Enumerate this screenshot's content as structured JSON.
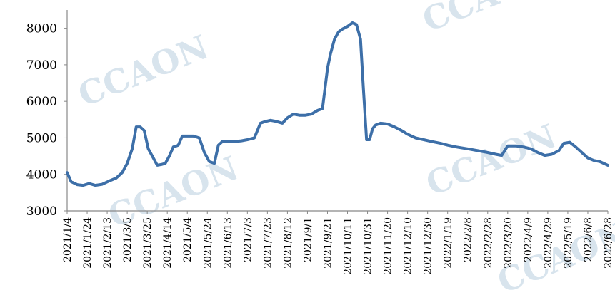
{
  "chart_data": {
    "type": "line",
    "title": "",
    "xlabel": "",
    "ylabel": "",
    "ylim": [
      3000,
      8500
    ],
    "yticks": [
      3000,
      4000,
      5000,
      6000,
      7000,
      8000
    ],
    "grid": false,
    "legend": "none",
    "line_color": "#3d6fa8",
    "x_tick_labels": [
      "2021/1/4",
      "2021/1/24",
      "2021/2/13",
      "2021/3/5",
      "2021/3/25",
      "2021/4/14",
      "2021/5/4",
      "2021/5/24",
      "2021/6/13",
      "2021/7/3",
      "2021/7/23",
      "2021/8/12",
      "2021/9/1",
      "2021/9/21",
      "2021/10/11",
      "2021/10/31",
      "2021/11/20",
      "2021/12/10",
      "2021/12/30",
      "2022/1/19",
      "2022/2/8",
      "2022/2/28",
      "2022/3/20",
      "2022/4/9",
      "2022/4/29",
      "2022/5/19",
      "2022/6/8",
      "2022/6/28"
    ],
    "series": [
      {
        "name": "",
        "x": [
          "2021/1/4",
          "2021/1/8",
          "2021/1/14",
          "2021/1/20",
          "2021/1/26",
          "2021/2/1",
          "2021/2/8",
          "2021/2/15",
          "2021/2/22",
          "2021/2/28",
          "2021/3/5",
          "2021/3/10",
          "2021/3/14",
          "2021/3/18",
          "2021/3/22",
          "2021/3/26",
          "2021/3/30",
          "2021/4/4",
          "2021/4/8",
          "2021/4/12",
          "2021/4/16",
          "2021/4/20",
          "2021/4/25",
          "2021/4/29",
          "2021/5/4",
          "2021/5/10",
          "2021/5/16",
          "2021/5/21",
          "2021/5/26",
          "2021/5/31",
          "2021/6/4",
          "2021/6/8",
          "2021/6/13",
          "2021/6/20",
          "2021/6/27",
          "2021/7/3",
          "2021/7/10",
          "2021/7/16",
          "2021/7/21",
          "2021/7/26",
          "2021/8/1",
          "2021/8/7",
          "2021/8/12",
          "2021/8/18",
          "2021/8/24",
          "2021/8/30",
          "2021/9/5",
          "2021/9/11",
          "2021/9/16",
          "2021/9/21",
          "2021/9/24",
          "2021/9/28",
          "2021/10/2",
          "2021/10/6",
          "2021/10/11",
          "2021/10/16",
          "2021/10/20",
          "2021/10/24",
          "2021/10/27",
          "2021/10/30",
          "2021/11/2",
          "2021/11/5",
          "2021/11/8",
          "2021/11/13",
          "2021/11/20",
          "2021/11/27",
          "2021/12/4",
          "2021/12/10",
          "2021/12/18",
          "2021/12/26",
          "2022/1/3",
          "2022/1/12",
          "2022/1/19",
          "2022/1/28",
          "2022/2/8",
          "2022/2/18",
          "2022/2/28",
          "2022/3/8",
          "2022/3/14",
          "2022/3/20",
          "2022/3/28",
          "2022/4/5",
          "2022/4/12",
          "2022/4/19",
          "2022/4/26",
          "2022/5/3",
          "2022/5/10",
          "2022/5/15",
          "2022/5/21",
          "2022/5/27",
          "2022/6/2",
          "2022/6/8",
          "2022/6/14",
          "2022/6/20",
          "2022/6/28"
        ],
        "y": [
          4050,
          3800,
          3720,
          3700,
          3750,
          3700,
          3730,
          3820,
          3900,
          4050,
          4300,
          4700,
          5300,
          5300,
          5200,
          4700,
          4500,
          4250,
          4270,
          4300,
          4500,
          4750,
          4800,
          5050,
          5050,
          5050,
          5000,
          4600,
          4350,
          4300,
          4800,
          4900,
          4900,
          4900,
          4920,
          4950,
          5000,
          5400,
          5450,
          5480,
          5450,
          5400,
          5550,
          5650,
          5620,
          5620,
          5650,
          5750,
          5800,
          6900,
          7300,
          7700,
          7900,
          7980,
          8050,
          8150,
          8100,
          7700,
          6300,
          4950,
          4950,
          5250,
          5350,
          5400,
          5380,
          5300,
          5200,
          5100,
          5000,
          4950,
          4900,
          4850,
          4800,
          4750,
          4700,
          4650,
          4600,
          4550,
          4520,
          4780,
          4780,
          4750,
          4700,
          4600,
          4520,
          4550,
          4650,
          4850,
          4880,
          4750,
          4600,
          4450,
          4380,
          4350,
          4250
        ]
      }
    ]
  },
  "watermarks": [
    "CCAON",
    "CCAON",
    "CCAON",
    "CCAON",
    "CCAON"
  ]
}
